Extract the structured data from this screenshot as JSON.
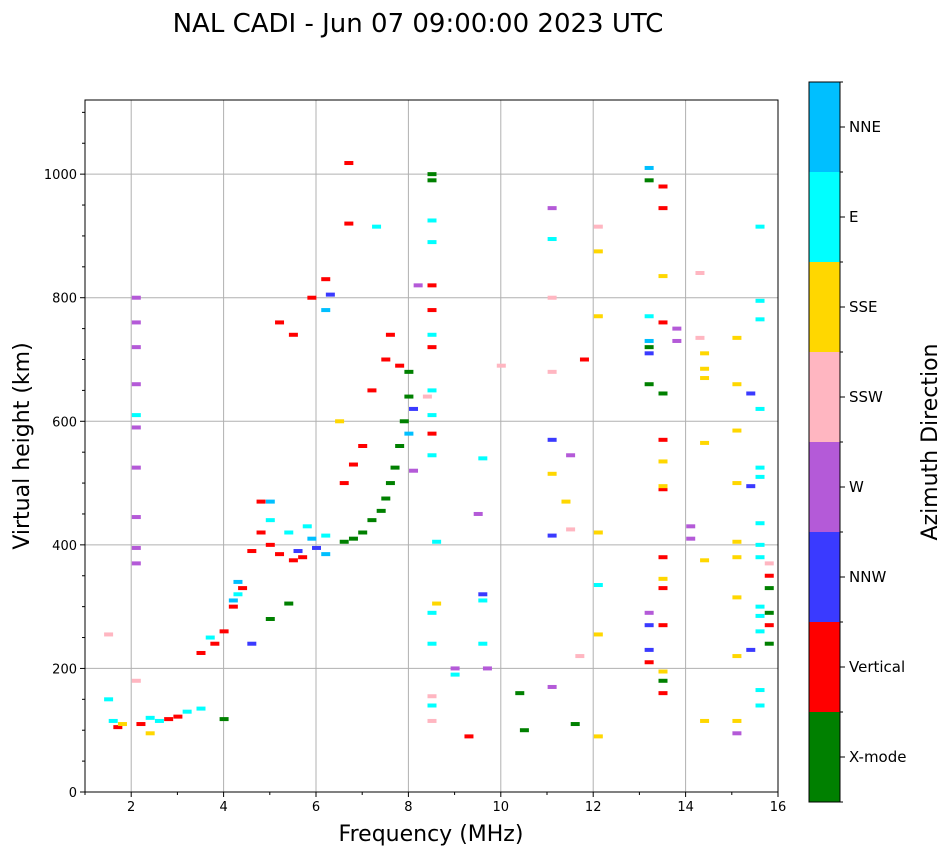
{
  "chart_data": {
    "type": "scatter",
    "title": "NAL CADI - Jun 07 09:00:00 2023 UTC",
    "xlabel": "Frequency (MHz)",
    "ylabel": "Virtual height (km)",
    "xlim": [
      1,
      16
    ],
    "ylim": [
      0,
      1120
    ],
    "xticks": [
      2,
      4,
      6,
      8,
      10,
      12,
      14,
      16
    ],
    "yticks": [
      0,
      200,
      400,
      600,
      800,
      1000
    ],
    "grid": true,
    "colorbar": {
      "title": "Azimuth Direction",
      "categories": [
        {
          "label": "X-mode",
          "color": "#008000"
        },
        {
          "label": "Vertical",
          "color": "#ff0000"
        },
        {
          "label": "NNW",
          "color": "#3a3aff"
        },
        {
          "label": "W",
          "color": "#b45ad8"
        },
        {
          "label": "SSW",
          "color": "#ffb6c1"
        },
        {
          "label": "SSE",
          "color": "#ffd700"
        },
        {
          "label": "E",
          "color": "#00ffff"
        },
        {
          "label": "NNE",
          "color": "#00bfff"
        }
      ]
    },
    "series": [
      {
        "name": "X-mode",
        "points": [
          [
            4.0,
            118
          ],
          [
            5.0,
            280
          ],
          [
            5.4,
            305
          ],
          [
            6.6,
            405
          ],
          [
            6.8,
            410
          ],
          [
            7.0,
            420
          ],
          [
            7.2,
            440
          ],
          [
            7.4,
            455
          ],
          [
            7.5,
            475
          ],
          [
            7.6,
            500
          ],
          [
            7.7,
            525
          ],
          [
            7.8,
            560
          ],
          [
            7.9,
            600
          ],
          [
            8.0,
            640
          ],
          [
            8.0,
            680
          ],
          [
            8.5,
            990
          ],
          [
            8.5,
            1000
          ],
          [
            10.4,
            160
          ],
          [
            10.5,
            100
          ],
          [
            11.6,
            110
          ],
          [
            13.2,
            990
          ],
          [
            13.2,
            720
          ],
          [
            13.2,
            660
          ],
          [
            15.8,
            240
          ],
          [
            15.8,
            290
          ],
          [
            15.8,
            330
          ],
          [
            13.5,
            645
          ],
          [
            13.5,
            180
          ]
        ]
      },
      {
        "name": "Vertical",
        "points": [
          [
            1.7,
            105
          ],
          [
            2.2,
            110
          ],
          [
            2.8,
            118
          ],
          [
            3.0,
            122
          ],
          [
            3.5,
            225
          ],
          [
            3.8,
            240
          ],
          [
            4.0,
            260
          ],
          [
            4.2,
            300
          ],
          [
            4.4,
            330
          ],
          [
            4.6,
            390
          ],
          [
            4.8,
            420
          ],
          [
            4.8,
            470
          ],
          [
            5.0,
            400
          ],
          [
            5.2,
            385
          ],
          [
            5.5,
            375
          ],
          [
            5.7,
            380
          ],
          [
            5.2,
            760
          ],
          [
            5.5,
            740
          ],
          [
            5.9,
            800
          ],
          [
            6.2,
            830
          ],
          [
            6.6,
            500
          ],
          [
            6.7,
            920
          ],
          [
            6.7,
            1018
          ],
          [
            6.8,
            530
          ],
          [
            7.0,
            560
          ],
          [
            7.2,
            650
          ],
          [
            7.5,
            700
          ],
          [
            7.6,
            740
          ],
          [
            7.8,
            690
          ],
          [
            8.5,
            580
          ],
          [
            8.5,
            820
          ],
          [
            8.5,
            780
          ],
          [
            8.5,
            720
          ],
          [
            11.8,
            700
          ],
          [
            13.5,
            980
          ],
          [
            13.5,
            945
          ],
          [
            13.5,
            760
          ],
          [
            13.5,
            570
          ],
          [
            13.5,
            490
          ],
          [
            13.5,
            380
          ],
          [
            13.5,
            330
          ],
          [
            13.5,
            270
          ],
          [
            13.2,
            210
          ],
          [
            13.5,
            160
          ],
          [
            15.8,
            270
          ],
          [
            15.8,
            350
          ],
          [
            9.3,
            90
          ]
        ]
      },
      {
        "name": "NNW",
        "points": [
          [
            4.6,
            240
          ],
          [
            5.6,
            390
          ],
          [
            6.0,
            395
          ],
          [
            6.3,
            805
          ],
          [
            8.1,
            620
          ],
          [
            11.1,
            570
          ],
          [
            11.1,
            415
          ],
          [
            13.2,
            270
          ],
          [
            13.2,
            230
          ],
          [
            13.2,
            710
          ],
          [
            15.4,
            645
          ],
          [
            15.4,
            495
          ],
          [
            15.4,
            230
          ],
          [
            9.6,
            320
          ]
        ]
      },
      {
        "name": "W",
        "points": [
          [
            2.1,
            800
          ],
          [
            2.1,
            760
          ],
          [
            2.1,
            720
          ],
          [
            2.1,
            660
          ],
          [
            2.1,
            590
          ],
          [
            2.1,
            525
          ],
          [
            2.1,
            445
          ],
          [
            2.1,
            395
          ],
          [
            2.1,
            370
          ],
          [
            8.1,
            520
          ],
          [
            8.2,
            820
          ],
          [
            11.1,
            945
          ],
          [
            11.1,
            170
          ],
          [
            11.5,
            545
          ],
          [
            13.2,
            290
          ],
          [
            13.8,
            750
          ],
          [
            13.8,
            730
          ],
          [
            14.1,
            430
          ],
          [
            14.1,
            410
          ],
          [
            15.1,
            95
          ],
          [
            9.0,
            200
          ],
          [
            9.5,
            450
          ],
          [
            9.7,
            200
          ]
        ]
      },
      {
        "name": "SSW",
        "points": [
          [
            1.5,
            255
          ],
          [
            2.1,
            180
          ],
          [
            8.4,
            640
          ],
          [
            8.5,
            155
          ],
          [
            8.5,
            115
          ],
          [
            10.0,
            690
          ],
          [
            11.1,
            800
          ],
          [
            11.1,
            680
          ],
          [
            11.5,
            425
          ],
          [
            11.7,
            220
          ],
          [
            12.1,
            915
          ],
          [
            14.3,
            840
          ],
          [
            14.3,
            735
          ],
          [
            15.8,
            370
          ]
        ]
      },
      {
        "name": "SSE",
        "points": [
          [
            1.8,
            110
          ],
          [
            2.4,
            95
          ],
          [
            6.5,
            600
          ],
          [
            8.6,
            305
          ],
          [
            11.1,
            515
          ],
          [
            11.4,
            470
          ],
          [
            12.1,
            875
          ],
          [
            12.1,
            770
          ],
          [
            12.1,
            420
          ],
          [
            12.1,
            255
          ],
          [
            12.1,
            90
          ],
          [
            13.5,
            835
          ],
          [
            13.5,
            535
          ],
          [
            13.5,
            495
          ],
          [
            13.5,
            345
          ],
          [
            13.5,
            195
          ],
          [
            14.4,
            710
          ],
          [
            14.4,
            685
          ],
          [
            14.4,
            670
          ],
          [
            14.4,
            565
          ],
          [
            14.4,
            375
          ],
          [
            14.4,
            115
          ],
          [
            15.1,
            735
          ],
          [
            15.1,
            660
          ],
          [
            15.1,
            585
          ],
          [
            15.1,
            500
          ],
          [
            15.1,
            405
          ],
          [
            15.1,
            380
          ],
          [
            15.1,
            315
          ],
          [
            15.1,
            220
          ],
          [
            15.1,
            115
          ]
        ]
      },
      {
        "name": "E",
        "points": [
          [
            1.5,
            150
          ],
          [
            1.6,
            115
          ],
          [
            2.1,
            610
          ],
          [
            2.4,
            120
          ],
          [
            2.6,
            115
          ],
          [
            3.2,
            130
          ],
          [
            3.5,
            135
          ],
          [
            3.7,
            250
          ],
          [
            4.3,
            320
          ],
          [
            5.0,
            440
          ],
          [
            5.4,
            420
          ],
          [
            5.8,
            430
          ],
          [
            6.2,
            415
          ],
          [
            7.3,
            915
          ],
          [
            8.5,
            925
          ],
          [
            8.5,
            890
          ],
          [
            8.5,
            740
          ],
          [
            8.5,
            650
          ],
          [
            8.5,
            610
          ],
          [
            8.5,
            545
          ],
          [
            8.6,
            405
          ],
          [
            8.5,
            290
          ],
          [
            8.5,
            240
          ],
          [
            8.5,
            140
          ],
          [
            9.6,
            540
          ],
          [
            9.6,
            310
          ],
          [
            9.6,
            240
          ],
          [
            11.1,
            895
          ],
          [
            12.1,
            335
          ],
          [
            13.2,
            770
          ],
          [
            15.6,
            915
          ],
          [
            15.6,
            795
          ],
          [
            15.6,
            765
          ],
          [
            15.6,
            620
          ],
          [
            15.6,
            525
          ],
          [
            15.6,
            510
          ],
          [
            15.6,
            435
          ],
          [
            15.6,
            400
          ],
          [
            15.6,
            380
          ],
          [
            15.6,
            300
          ],
          [
            15.6,
            285
          ],
          [
            15.6,
            260
          ],
          [
            15.6,
            165
          ],
          [
            15.6,
            140
          ],
          [
            9.0,
            190
          ]
        ]
      },
      {
        "name": "NNE",
        "points": [
          [
            4.2,
            310
          ],
          [
            4.3,
            340
          ],
          [
            5.0,
            470
          ],
          [
            5.9,
            410
          ],
          [
            6.2,
            385
          ],
          [
            6.2,
            780
          ],
          [
            8.0,
            580
          ],
          [
            13.2,
            1010
          ],
          [
            13.2,
            730
          ]
        ]
      }
    ]
  }
}
